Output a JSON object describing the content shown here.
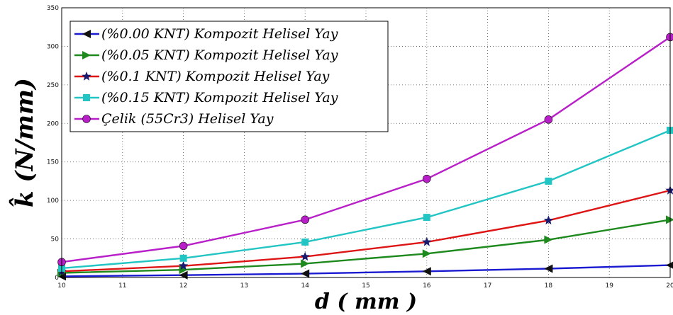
{
  "chart_data": {
    "type": "line",
    "xlabel": "d ( mm )",
    "ylabel": "k̂ (N/mm)",
    "xlim": [
      10,
      20
    ],
    "ylim": [
      0,
      350
    ],
    "xticks": [
      10,
      11,
      12,
      13,
      14,
      15,
      16,
      17,
      18,
      19,
      20
    ],
    "yticks": [
      0,
      50,
      100,
      150,
      200,
      250,
      300,
      350
    ],
    "grid": true,
    "legend_position": "top-left",
    "x": [
      10,
      12,
      14,
      16,
      18,
      20
    ],
    "series": [
      {
        "name": "(%0.00 KNT) Kompozit Helisel Yay",
        "color": "#1a1ad0",
        "marker": "triangle-left",
        "values": [
          1.5,
          3,
          5,
          8,
          11.5,
          16
        ]
      },
      {
        "name": "(%0.05 KNT) Kompozit Helisel Yay",
        "color": "#1e8a1e",
        "marker": "triangle-right",
        "values": [
          6,
          10,
          18,
          31,
          49,
          75
        ]
      },
      {
        "name": "(%0.1 KNT) Kompozit Helisel Yay",
        "color": "#dd1515",
        "marker": "star",
        "values": [
          8,
          15,
          27,
          46,
          74,
          113
        ]
      },
      {
        "name": "(%0.15 KNT) Kompozit Helisel Yay",
        "color": "#22c4c4",
        "marker": "square",
        "values": [
          12,
          25,
          46,
          78,
          125,
          191
        ]
      },
      {
        "name": "Çelik (55Cr3) Helisel Yay",
        "color": "#b81fc8",
        "marker": "circle",
        "values": [
          20,
          41,
          75,
          128,
          205,
          312
        ]
      }
    ]
  }
}
